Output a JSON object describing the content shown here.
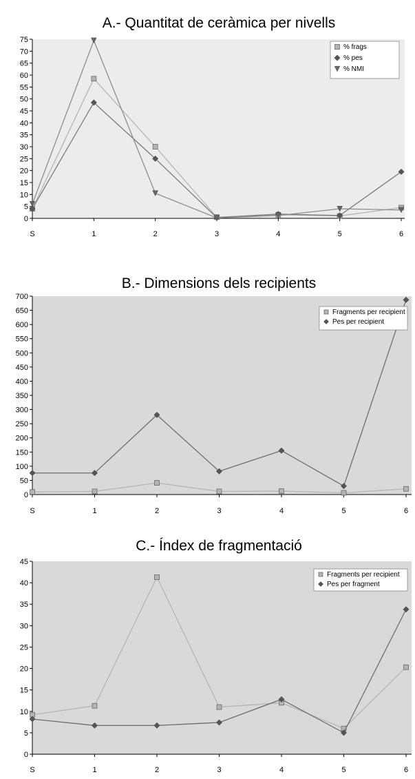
{
  "chart_data": [
    {
      "type": "line",
      "title": "A.- Quantitat de ceràmica per nivells",
      "categories": [
        "S",
        "1",
        "2",
        "3",
        "4",
        "5",
        "6"
      ],
      "ylim": [
        0,
        75
      ],
      "yticks": [
        0,
        5,
        10,
        15,
        20,
        25,
        30,
        35,
        40,
        45,
        50,
        55,
        60,
        65,
        70,
        75
      ],
      "grid": false,
      "legend": "top-right",
      "series": [
        {
          "name": "% frags",
          "marker": "square",
          "color": "#b4b4b4",
          "values": [
            4,
            58.5,
            30,
            0.5,
            1.5,
            1,
            4.5
          ]
        },
        {
          "name": "% pes",
          "marker": "diamond",
          "color": "#7a7a7a",
          "values": [
            4,
            48.5,
            25,
            0.3,
            1.8,
            1.2,
            19.5
          ]
        },
        {
          "name": "% NMI",
          "marker": "triangle",
          "color": "#8c8c8c",
          "values": [
            6,
            74.5,
            10.5,
            0.2,
            1.2,
            4,
            3.5
          ]
        }
      ]
    },
    {
      "type": "line",
      "title": "B.- Dimensions dels recipients",
      "categories": [
        "S",
        "1",
        "2",
        "3",
        "4",
        "5",
        "6"
      ],
      "ylim": [
        0,
        700
      ],
      "yticks": [
        0,
        50,
        100,
        150,
        200,
        250,
        300,
        350,
        400,
        450,
        500,
        550,
        600,
        650,
        700
      ],
      "grid": false,
      "legend": "top-right",
      "series": [
        {
          "name": "Fragments per recipient",
          "marker": "square",
          "color": "#b4b4b4",
          "values": [
            9,
            11,
            41,
            11,
            12,
            6,
            20
          ]
        },
        {
          "name": "Pes per recipient",
          "marker": "diamond",
          "color": "#6e6e6e",
          "values": [
            76,
            76,
            281,
            82,
            155,
            30,
            687
          ]
        }
      ]
    },
    {
      "type": "line",
      "title": "C.- Índex de fragmentació",
      "categories": [
        "S",
        "1",
        "2",
        "3",
        "4",
        "5",
        "6"
      ],
      "ylim": [
        0,
        45
      ],
      "yticks": [
        0,
        5,
        10,
        15,
        20,
        25,
        30,
        35,
        40,
        45
      ],
      "grid": false,
      "legend": "top-right",
      "series": [
        {
          "name": "Fragments per recipient",
          "marker": "square",
          "color": "#b4b4b4",
          "values": [
            9.2,
            11.3,
            41.3,
            11,
            12,
            6,
            20.3
          ]
        },
        {
          "name": "Pes per fragment",
          "marker": "diamond",
          "color": "#6e6e6e",
          "values": [
            8.2,
            6.7,
            6.7,
            7.4,
            12.8,
            5,
            33.8
          ]
        }
      ]
    }
  ]
}
